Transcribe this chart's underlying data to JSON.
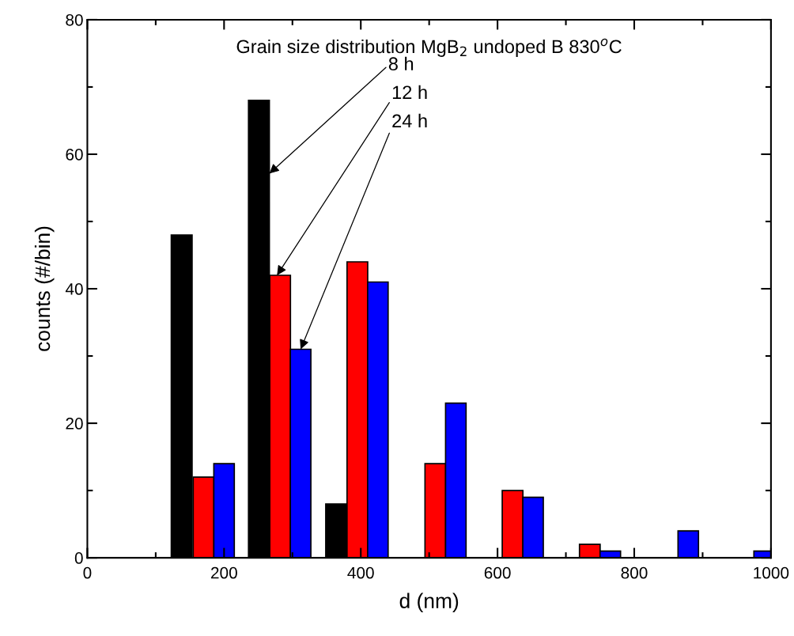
{
  "chart_data": {
    "type": "bar",
    "title": "Grain size distribution MgB$_{2}$ undoped B 830$^{o}$C",
    "xlabel": "d (nm)",
    "ylabel": "counts (#/bin)",
    "series": [
      {
        "name": "8 h",
        "color": "#000000",
        "x": [
          138,
          251,
          364
        ],
        "values": [
          48,
          68,
          8
        ]
      },
      {
        "name": "12 h",
        "color": "#ff0000",
        "x": [
          170,
          282,
          395,
          509,
          622,
          735
        ],
        "values": [
          12,
          42,
          44,
          14,
          10,
          2
        ]
      },
      {
        "name": "24 h",
        "color": "#0000ff",
        "x": [
          200,
          312,
          425,
          539,
          652,
          765,
          879,
          990
        ],
        "values": [
          14,
          31,
          41,
          23,
          9,
          1,
          4,
          1
        ]
      }
    ],
    "xlim": [
      0,
      1000
    ],
    "xticks": [
      0,
      200,
      400,
      600,
      800,
      1000
    ],
    "ylim": [
      0,
      80
    ],
    "yticks": [
      0,
      20,
      40,
      60,
      80
    ],
    "grid": false,
    "legend": false
  }
}
